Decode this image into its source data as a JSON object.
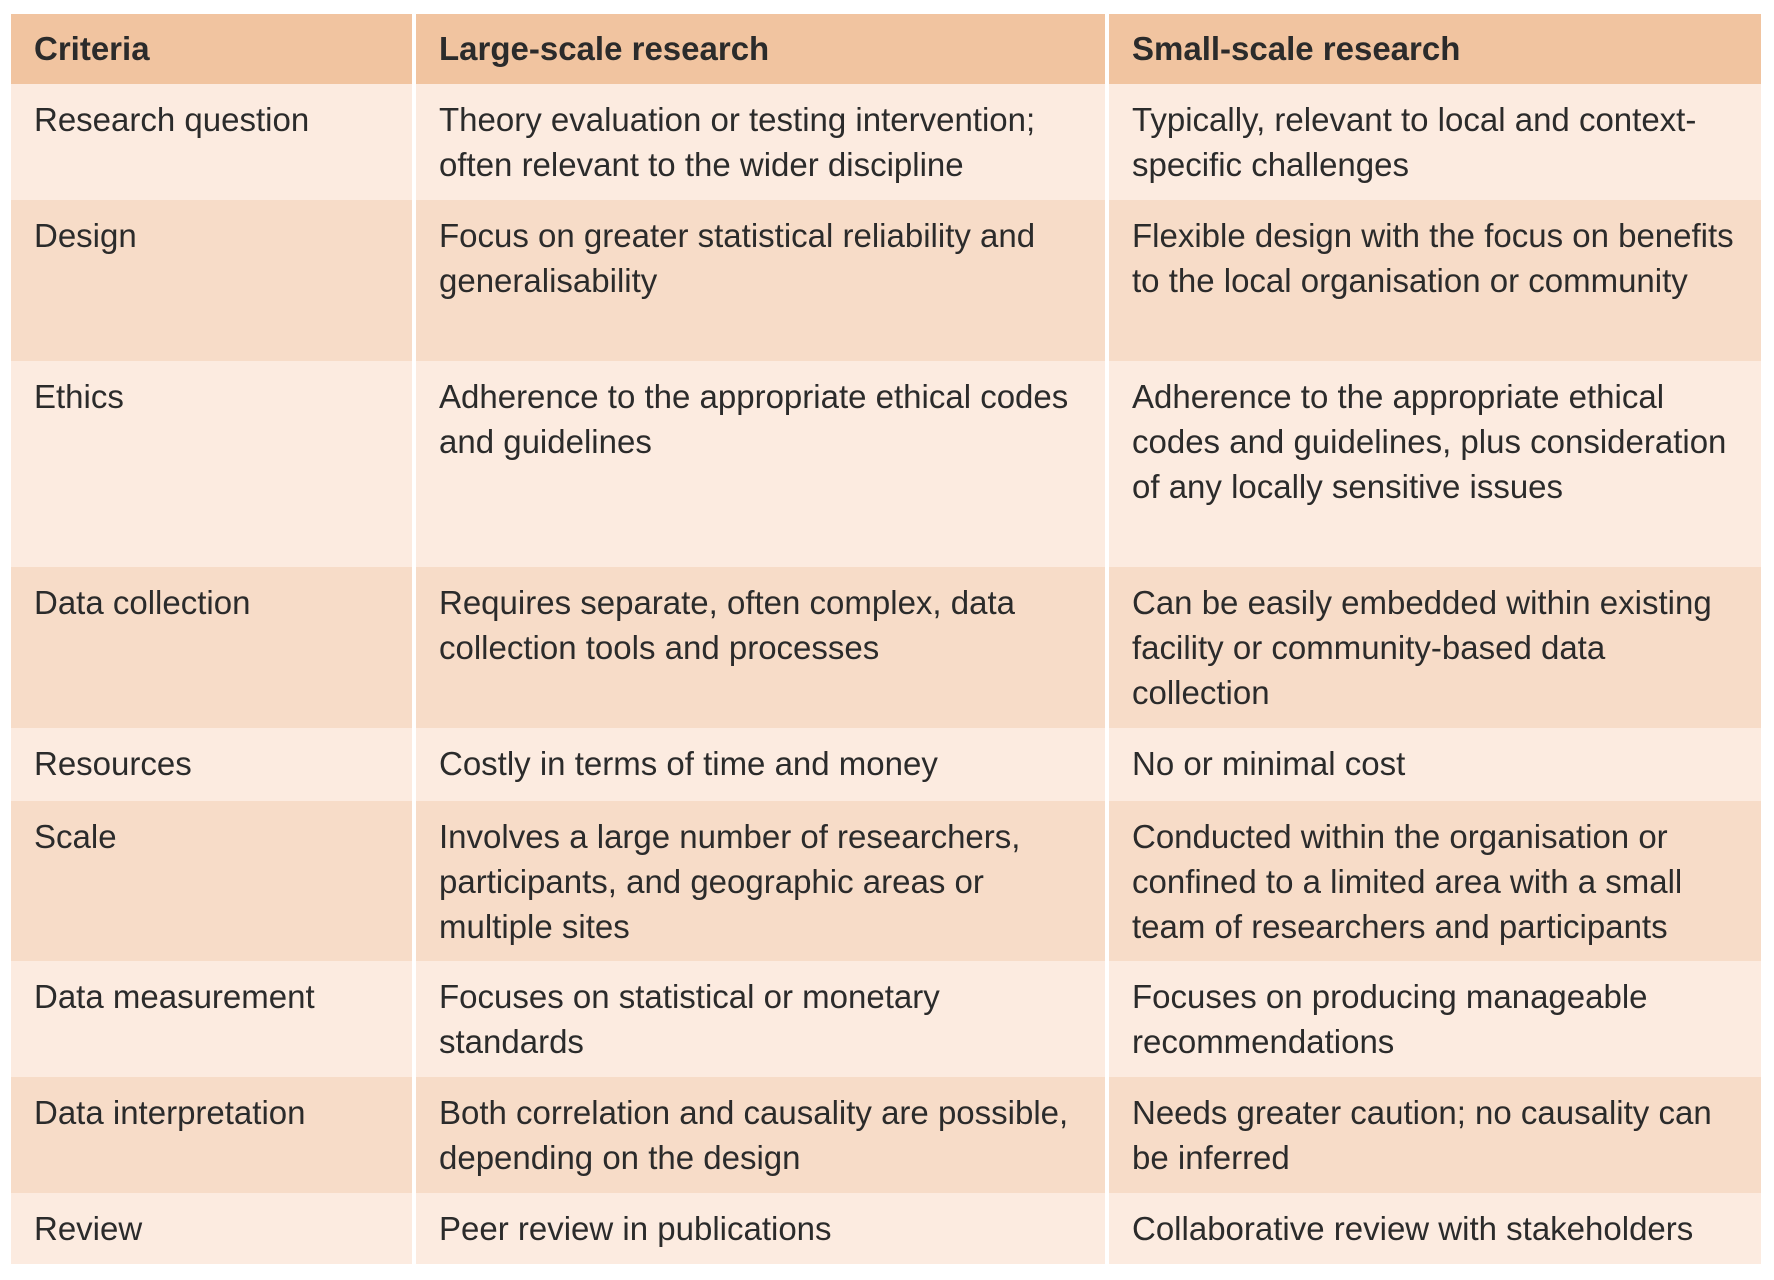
{
  "table": {
    "header": [
      "Criteria",
      "Large-scale research",
      "Small-scale research"
    ],
    "rows": [
      [
        "Research question",
        "Theory evaluation or testing intervention; often relevant to the wider discipline",
        "Typically, relevant to local and context-specific challenges"
      ],
      [
        "Design",
        "Focus on greater statistical reliability and generalisability",
        "Flexible design with the focus on benefits to the local organisation or community"
      ],
      [
        "Ethics",
        "Adherence to the appropriate ethical codes and guidelines",
        "Adherence to the appropriate ethical codes and guidelines, plus consideration of any locally sensitive issues"
      ],
      [
        "Data collection",
        "Requires separate, often complex, data collection tools and processes",
        "Can be easily embedded within existing facility or community-based data collection"
      ],
      [
        "Resources",
        "Costly in terms of time and money",
        "No or minimal cost"
      ],
      [
        "Scale",
        "Involves a large number of researchers, participants, and geographic areas or multiple sites",
        "Conducted within the organisation or confined to a limited area with a small team of researchers and participants"
      ],
      [
        "Data measurement",
        "Focuses on statistical or monetary standards",
        "Focuses on producing manageable recommendations"
      ],
      [
        "Data interpretation",
        "Both correlation and causality are possible, depending on the design",
        "Needs greater caution; no causality can be inferred"
      ],
      [
        "Review",
        "Peer review in publications",
        "Collaborative review with stakeholders"
      ]
    ]
  }
}
